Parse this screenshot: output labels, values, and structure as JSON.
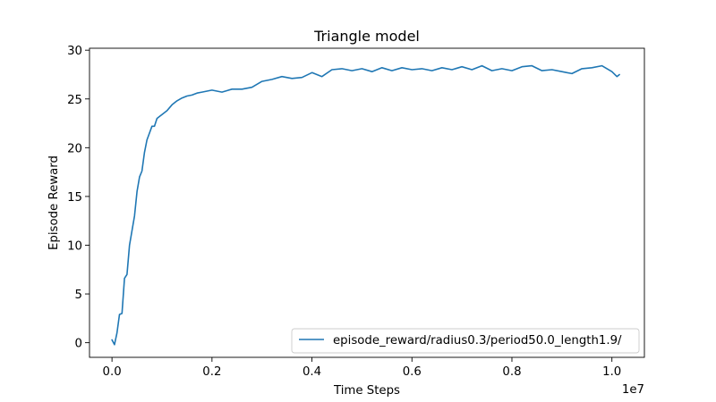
{
  "chart_data": {
    "type": "line",
    "title": "Triangle model",
    "xlabel": "Time Steps",
    "ylabel": "Episode Reward",
    "x_offset_label": "1e7",
    "xlim": [
      -0.045,
      1.065
    ],
    "ylim": [
      -1.5,
      30.2
    ],
    "x_ticks": [
      0.0,
      0.2,
      0.4,
      0.6,
      0.8,
      1.0
    ],
    "x_tick_labels": [
      "0.0",
      "0.2",
      "0.4",
      "0.6",
      "0.8",
      "1.0"
    ],
    "y_ticks": [
      0,
      5,
      10,
      15,
      20,
      25,
      30
    ],
    "y_tick_labels": [
      "0",
      "5",
      "10",
      "15",
      "20",
      "25",
      "30"
    ],
    "grid": false,
    "legend_position": "lower right",
    "series": [
      {
        "name": "episode_reward/radius0.3/period50.0_length1.9/",
        "color": "#1f77b4",
        "x": [
          0.0,
          0.005,
          0.01,
          0.015,
          0.02,
          0.025,
          0.03,
          0.035,
          0.04,
          0.045,
          0.05,
          0.055,
          0.06,
          0.065,
          0.07,
          0.075,
          0.08,
          0.085,
          0.09,
          0.095,
          0.1,
          0.11,
          0.12,
          0.13,
          0.14,
          0.15,
          0.16,
          0.17,
          0.18,
          0.19,
          0.2,
          0.22,
          0.24,
          0.26,
          0.28,
          0.3,
          0.32,
          0.34,
          0.36,
          0.38,
          0.4,
          0.42,
          0.44,
          0.46,
          0.48,
          0.5,
          0.52,
          0.54,
          0.56,
          0.58,
          0.6,
          0.62,
          0.64,
          0.66,
          0.68,
          0.7,
          0.72,
          0.74,
          0.76,
          0.78,
          0.8,
          0.82,
          0.84,
          0.86,
          0.88,
          0.9,
          0.92,
          0.94,
          0.96,
          0.98,
          1.0,
          1.01,
          1.015
        ],
        "y": [
          0.3,
          -0.2,
          1.0,
          2.9,
          3.0,
          6.6,
          7.0,
          10.0,
          11.5,
          13.0,
          15.5,
          17.0,
          17.6,
          19.5,
          20.8,
          21.5,
          22.2,
          22.2,
          23.0,
          23.2,
          23.4,
          23.8,
          24.4,
          24.8,
          25.1,
          25.3,
          25.4,
          25.6,
          25.7,
          25.8,
          25.9,
          25.7,
          26.0,
          26.0,
          26.2,
          26.8,
          27.0,
          27.3,
          27.1,
          27.2,
          27.7,
          27.3,
          28.0,
          28.1,
          27.9,
          28.1,
          27.8,
          28.2,
          27.9,
          28.2,
          28.0,
          28.1,
          27.9,
          28.2,
          28.0,
          28.3,
          28.0,
          28.4,
          27.9,
          28.1,
          27.9,
          28.3,
          28.4,
          27.9,
          28.0,
          27.8,
          27.6,
          28.1,
          28.2,
          28.4,
          27.8,
          27.3,
          27.5
        ]
      }
    ]
  }
}
